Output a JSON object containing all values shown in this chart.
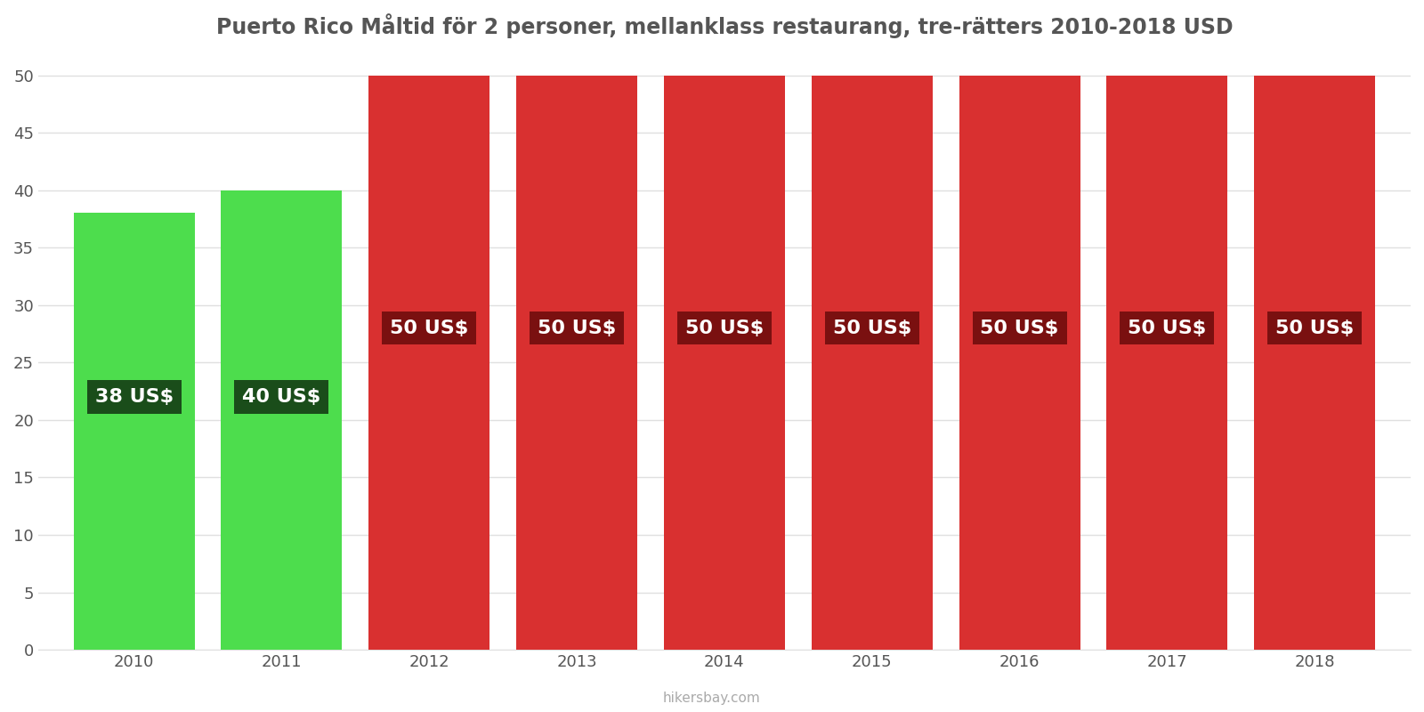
{
  "title": "Puerto Rico Måltid för 2 personer, mellanklass restaurang, tre-rätters 2010-2018 USD",
  "years": [
    2010,
    2011,
    2012,
    2013,
    2014,
    2015,
    2016,
    2017,
    2018
  ],
  "values": [
    38,
    40,
    50,
    50,
    50,
    50,
    50,
    50,
    50
  ],
  "bar_colors": [
    "#4ddd4d",
    "#4ddd4d",
    "#d93030",
    "#d93030",
    "#d93030",
    "#d93030",
    "#d93030",
    "#d93030",
    "#d93030"
  ],
  "label_bg_colors": [
    "#1a4d1a",
    "#1a4d1a",
    "#7a1010",
    "#7a1010",
    "#7a1010",
    "#7a1010",
    "#7a1010",
    "#7a1010",
    "#7a1010"
  ],
  "label_y_positions": [
    22,
    22,
    28,
    28,
    28,
    28,
    28,
    28,
    28
  ],
  "label_text_color": "#ffffff",
  "ylim": [
    0,
    52
  ],
  "yticks": [
    0,
    5,
    10,
    15,
    20,
    25,
    30,
    35,
    40,
    45,
    50
  ],
  "background_color": "#ffffff",
  "grid_color": "#e0e0e0",
  "title_color": "#555555",
  "tick_color": "#555555",
  "footer": "hikersbay.com",
  "title_fontsize": 17,
  "label_fontsize": 16,
  "tick_fontsize": 13,
  "bar_width": 0.82,
  "xlim": [
    2009.35,
    2018.65
  ]
}
